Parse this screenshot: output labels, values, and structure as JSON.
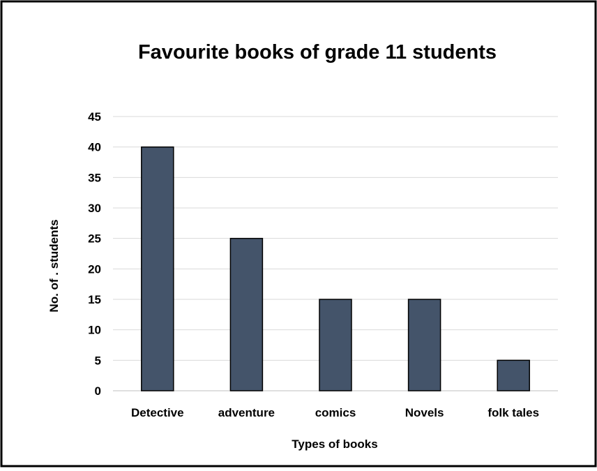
{
  "chart_data": {
    "type": "bar",
    "title": "Favourite books of grade 11 students",
    "xlabel": "Types of books",
    "ylabel": "No. of . students",
    "categories": [
      "Detective",
      "adventure",
      "comics",
      "Novels",
      "folk tales"
    ],
    "values": [
      40,
      25,
      15,
      15,
      5
    ],
    "ylim": [
      0,
      45
    ],
    "yticks": [
      "0",
      "5",
      "10",
      "15",
      "20",
      "25",
      "30",
      "35",
      "40",
      "45"
    ],
    "grid": true,
    "legend": "none",
    "colors": {
      "bar": "#44546a",
      "bar_edge": "#000000",
      "grid": "#d9d9d9",
      "border": "#000000"
    }
  }
}
